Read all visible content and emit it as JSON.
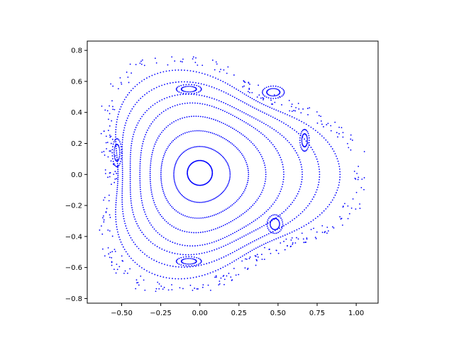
{
  "chart_data": {
    "type": "scatter",
    "title": "",
    "xlabel": "",
    "ylabel": "",
    "xlim": [
      -0.72,
      1.14
    ],
    "ylim": [
      -0.83,
      0.86
    ],
    "x_ticks": [
      -0.5,
      -0.25,
      0.0,
      0.25,
      0.5,
      0.75,
      1.0
    ],
    "x_tick_labels": [
      "−0.50",
      "−0.25",
      "0.00",
      "0.25",
      "0.50",
      "0.75",
      "1.00"
    ],
    "y_ticks": [
      -0.8,
      -0.6,
      -0.4,
      -0.2,
      0.0,
      0.2,
      0.4,
      0.6,
      0.8
    ],
    "y_tick_labels": [
      "−0.8",
      "−0.6",
      "−0.4",
      "−0.2",
      "0.0",
      "0.2",
      "0.4",
      "0.6",
      "0.8"
    ],
    "grid": false,
    "legend": "none",
    "marker_color": "#0000ff",
    "series": [
      {
        "kind": "invariant_curves",
        "curves": [
          {
            "cx": 0.0,
            "cy": 0.01,
            "rx": 0.08,
            "ry": 0.08,
            "skew": 0.0
          },
          {
            "cx": 0.01,
            "cy": 0.0,
            "rx": 0.18,
            "ry": 0.18,
            "skew": 0.02
          },
          {
            "cx": 0.02,
            "cy": 0.0,
            "rx": 0.28,
            "ry": 0.28,
            "skew": 0.04
          },
          {
            "cx": 0.03,
            "cy": 0.0,
            "rx": 0.37,
            "ry": 0.37,
            "skew": 0.06
          },
          {
            "cx": 0.04,
            "cy": 0.0,
            "rx": 0.46,
            "ry": 0.45,
            "skew": 0.08
          },
          {
            "cx": 0.05,
            "cy": 0.0,
            "rx": 0.55,
            "ry": 0.5,
            "skew": 0.1
          },
          {
            "cx": 0.06,
            "cy": 0.0,
            "rx": 0.63,
            "ry": 0.57,
            "skew": 0.12
          },
          {
            "cx": 0.08,
            "cy": 0.0,
            "rx": 0.71,
            "ry": 0.63,
            "skew": 0.15
          }
        ]
      },
      {
        "kind": "islands",
        "items": [
          {
            "cx": -0.07,
            "cy": 0.55,
            "rx": 0.08,
            "ry": 0.03
          },
          {
            "cx": 0.47,
            "cy": 0.53,
            "rx": 0.07,
            "ry": 0.04
          },
          {
            "cx": 0.67,
            "cy": 0.22,
            "rx": 0.03,
            "ry": 0.07
          },
          {
            "cx": 0.48,
            "cy": -0.32,
            "rx": 0.05,
            "ry": 0.06
          },
          {
            "cx": -0.07,
            "cy": -0.56,
            "rx": 0.08,
            "ry": 0.03
          },
          {
            "cx": -0.53,
            "cy": 0.14,
            "rx": 0.03,
            "ry": 0.09
          }
        ]
      }
    ]
  }
}
